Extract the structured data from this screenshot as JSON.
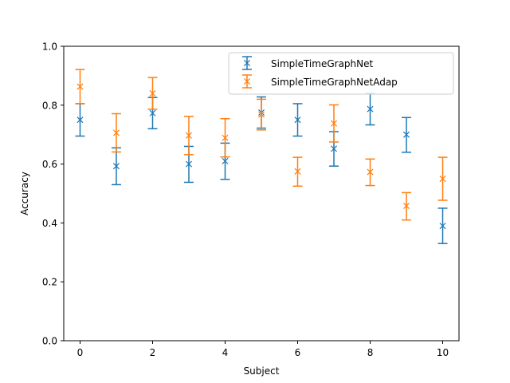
{
  "chart_data": {
    "type": "scatter",
    "title": "",
    "xlabel": "Subject",
    "ylabel": "Accuracy",
    "xlim": [
      -0.45,
      10.45
    ],
    "ylim": [
      0.0,
      1.0
    ],
    "xticks": [
      0,
      2,
      4,
      6,
      8,
      10
    ],
    "yticks": [
      0.0,
      0.2,
      0.4,
      0.6,
      0.8,
      1.0
    ],
    "ytick_labels": [
      "0.0",
      "0.2",
      "0.4",
      "0.6",
      "0.8",
      "1.0"
    ],
    "grid": false,
    "legend_position": "top-right",
    "marker": "x",
    "error_bars": true,
    "series": [
      {
        "name": "SimpleTimeGraphNet",
        "color": "#1f77b4",
        "x": [
          0,
          1,
          2,
          3,
          4,
          5,
          6,
          7,
          8,
          9,
          10
        ],
        "y": [
          0.75,
          0.593,
          0.773,
          0.6,
          0.61,
          0.775,
          0.75,
          0.652,
          0.787,
          0.7,
          0.39
        ],
        "err_low": [
          0.695,
          0.53,
          0.72,
          0.538,
          0.548,
          0.722,
          0.695,
          0.593,
          0.733,
          0.64,
          0.33
        ],
        "err_high": [
          0.805,
          0.655,
          0.826,
          0.66,
          0.671,
          0.828,
          0.805,
          0.71,
          0.84,
          0.758,
          0.45
        ]
      },
      {
        "name": "SimpleTimeGraphNetAdap",
        "color": "#ff7f0e",
        "x": [
          0,
          1,
          2,
          3,
          4,
          5,
          6,
          7,
          8,
          9,
          10
        ],
        "y": [
          0.863,
          0.706,
          0.84,
          0.697,
          0.689,
          0.768,
          0.575,
          0.738,
          0.573,
          0.458,
          0.55
        ],
        "err_low": [
          0.805,
          0.641,
          0.786,
          0.632,
          0.624,
          0.716,
          0.525,
          0.675,
          0.527,
          0.41,
          0.477
        ],
        "err_high": [
          0.921,
          0.771,
          0.894,
          0.762,
          0.754,
          0.82,
          0.623,
          0.801,
          0.617,
          0.503,
          0.623
        ]
      }
    ]
  }
}
